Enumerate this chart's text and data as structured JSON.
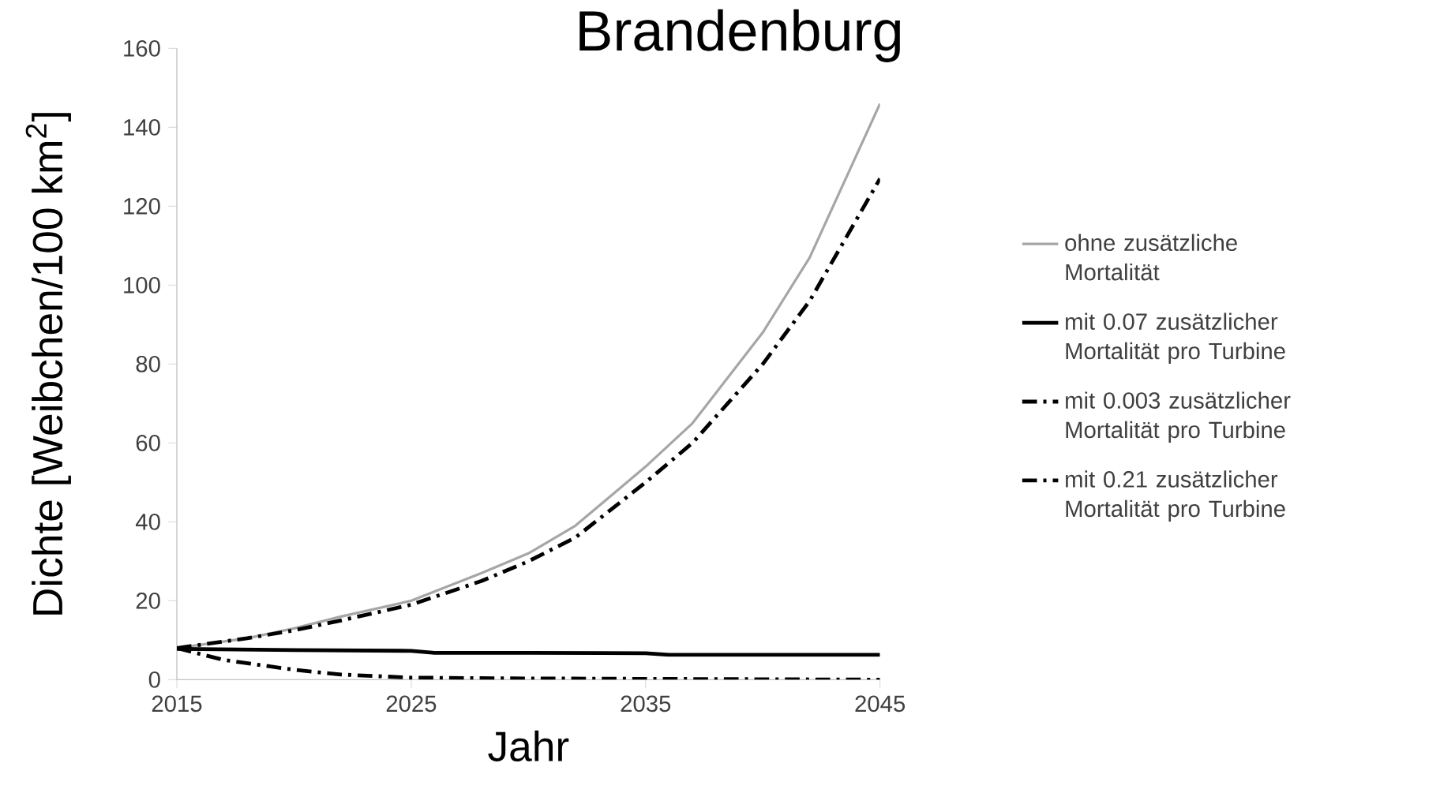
{
  "chart_data": {
    "type": "line",
    "title": "Brandenburg",
    "xlabel": "Jahr",
    "ylabel": "Dichte [Weibchen/100 km$^{2}$]",
    "xlim": [
      2015,
      2045
    ],
    "xticks": [
      2015,
      2025,
      2035,
      2045
    ],
    "ylim": [
      0,
      160
    ],
    "yticks": [
      0,
      20,
      40,
      60,
      80,
      100,
      120,
      140,
      160
    ],
    "legend": "right",
    "grid": false,
    "series": [
      {
        "name": "ohne zusätzliche Mortalität",
        "color": "#a6a6a6",
        "line_style": "solid",
        "x": [
          2015,
          2018,
          2020,
          2022,
          2025,
          2028,
          2030,
          2032,
          2035,
          2037,
          2040,
          2042,
          2045
        ],
        "values": [
          8,
          10.5,
          13,
          16,
          20,
          27,
          32,
          39,
          54,
          65,
          88,
          107,
          146
        ]
      },
      {
        "name": "mit 0.07 zusätzlicher Mortalität pro Turbine",
        "color": "#000000",
        "line_style": "solid",
        "x": [
          2015,
          2020,
          2025,
          2026,
          2030,
          2035,
          2036,
          2040,
          2045
        ],
        "values": [
          7.8,
          7.5,
          7.3,
          6.8,
          6.8,
          6.7,
          6.3,
          6.3,
          6.3
        ]
      },
      {
        "name": "mit 0.003 zusätzlicher Mortalität pro Turbine",
        "color": "#000000",
        "line_style": "dashdot",
        "x": [
          2015,
          2018,
          2020,
          2022,
          2025,
          2028,
          2030,
          2032,
          2035,
          2037,
          2040,
          2042,
          2045
        ],
        "values": [
          8,
          10.5,
          12.5,
          15,
          19,
          25,
          30,
          36,
          50,
          60,
          80,
          96,
          127
        ]
      },
      {
        "name": "mit 0.21 zusätzlicher Mortalität pro Turbine",
        "color": "#000000",
        "line_style": "dashdot",
        "x": [
          2015,
          2017,
          2020,
          2022,
          2025,
          2030,
          2035,
          2040,
          2045
        ],
        "values": [
          8,
          5,
          2.5,
          1.3,
          0.5,
          0.3,
          0.2,
          0.1,
          0
        ]
      }
    ]
  }
}
